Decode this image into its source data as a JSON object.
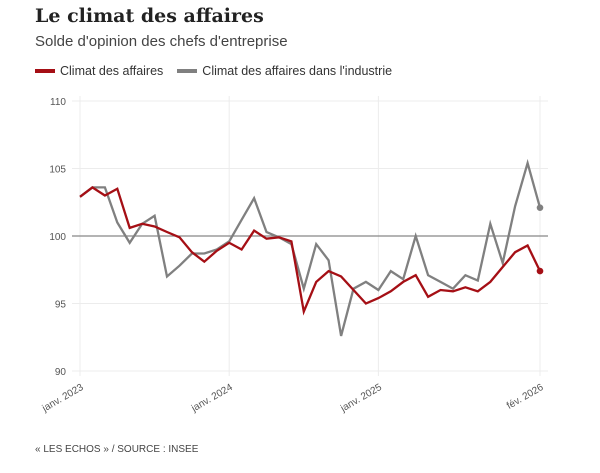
{
  "title": "Le climat des affaires",
  "subtitle": "Solde d'opinion des chefs d'entreprise",
  "source": "« LES ECHOS » / SOURCE : INSEE",
  "chart_data": {
    "type": "line",
    "title": "Le climat des affaires",
    "subtitle": "Solde d'opinion des chefs d'entreprise",
    "ylim": [
      90,
      110
    ],
    "yticks": [
      90,
      95,
      100,
      105,
      110
    ],
    "reference_line": 100,
    "x_start": "2023-01",
    "x_count": 38,
    "xticks": [
      {
        "index": 0,
        "label": "janv. 2023"
      },
      {
        "index": 12,
        "label": "janv. 2024"
      },
      {
        "index": 24,
        "label": "janv. 2025"
      },
      {
        "index": 37,
        "label": "fév. 2026"
      }
    ],
    "legend_placement": "top-left",
    "series": [
      {
        "name": "Climat des affaires",
        "color": "#a50f15",
        "values": [
          102.9,
          103.6,
          103.0,
          103.5,
          100.6,
          100.9,
          100.7,
          100.3,
          99.9,
          98.8,
          98.1,
          98.9,
          99.5,
          99.0,
          100.4,
          99.8,
          99.9,
          99.6,
          94.4,
          96.6,
          97.4,
          97.0,
          96.0,
          95.0,
          95.4,
          95.9,
          96.6,
          97.1,
          95.5,
          96.0,
          95.9,
          96.2,
          95.9,
          96.6,
          97.7,
          98.8,
          99.3,
          97.4
        ]
      },
      {
        "name": "Climat des affaires dans l'industrie",
        "color": "#808080",
        "values": [
          102.9,
          103.6,
          103.6,
          101.0,
          99.5,
          100.9,
          101.5,
          97.0,
          97.8,
          98.7,
          98.7,
          99.0,
          99.6,
          101.2,
          102.8,
          100.3,
          99.9,
          99.4,
          96.1,
          99.4,
          98.2,
          92.6,
          96.1,
          96.6,
          96.0,
          97.4,
          96.8,
          100.0,
          97.1,
          96.6,
          96.1,
          97.1,
          96.7,
          100.9,
          98.0,
          102.2,
          105.4,
          102.1
        ]
      }
    ]
  }
}
